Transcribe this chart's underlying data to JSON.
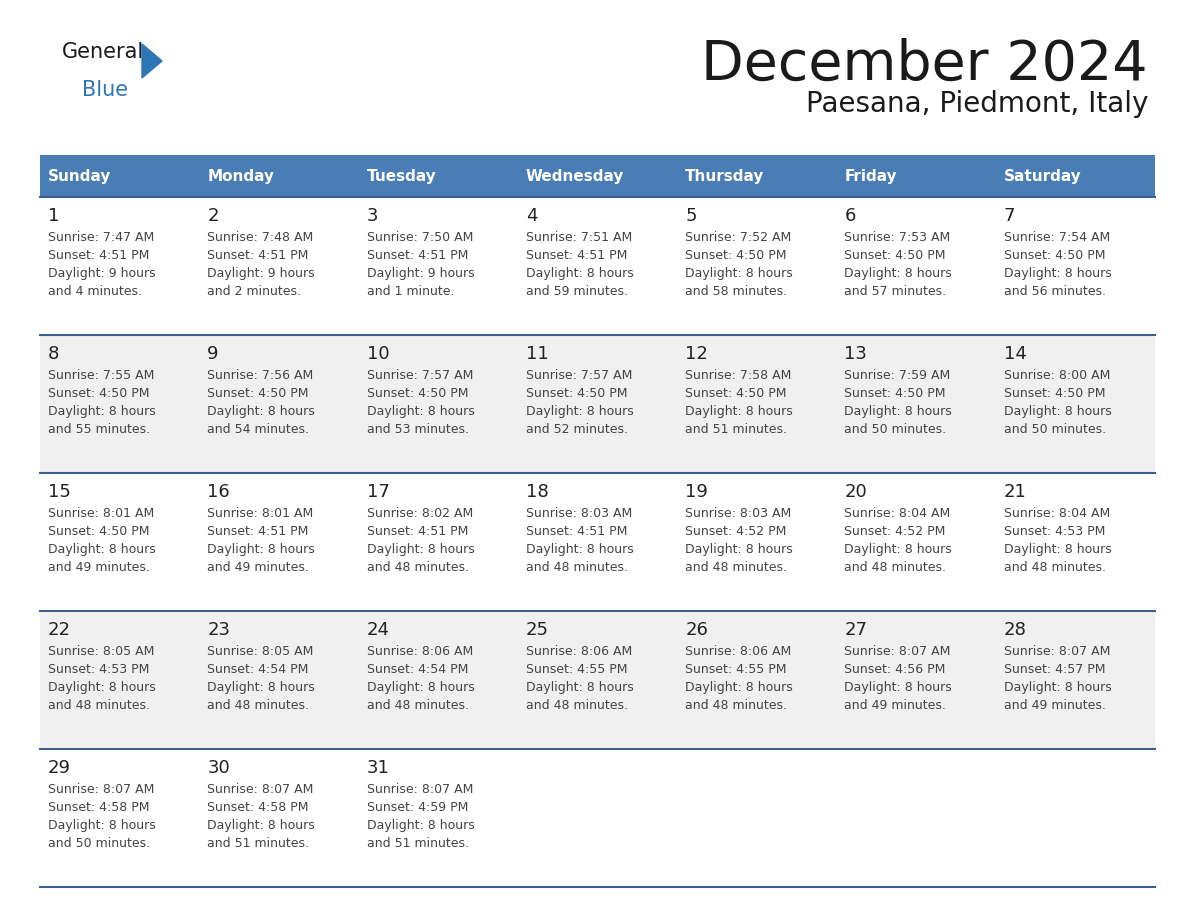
{
  "title": "December 2024",
  "subtitle": "Paesana, Piedmont, Italy",
  "header_bg": "#4a7cb5",
  "header_text_color": "#FFFFFF",
  "header_days": [
    "Sunday",
    "Monday",
    "Tuesday",
    "Wednesday",
    "Thursday",
    "Friday",
    "Saturday"
  ],
  "row_bg_even": "#FFFFFF",
  "row_bg_odd": "#f0f0f0",
  "cell_text_color": "#444444",
  "day_number_color": "#222222",
  "grid_line_color": "#3a6090",
  "title_color": "#1a1a1a",
  "subtitle_color": "#1a1a1a",
  "logo_general_color": "#1a1a1a",
  "logo_blue_color": "#2E75B6",
  "logo_triangle_color": "#2E75B6",
  "weeks": [
    [
      {
        "day": 1,
        "sunrise": "7:47 AM",
        "sunset": "4:51 PM",
        "daylight_line1": "9 hours",
        "daylight_line2": "and 4 minutes."
      },
      {
        "day": 2,
        "sunrise": "7:48 AM",
        "sunset": "4:51 PM",
        "daylight_line1": "9 hours",
        "daylight_line2": "and 2 minutes."
      },
      {
        "day": 3,
        "sunrise": "7:50 AM",
        "sunset": "4:51 PM",
        "daylight_line1": "9 hours",
        "daylight_line2": "and 1 minute."
      },
      {
        "day": 4,
        "sunrise": "7:51 AM",
        "sunset": "4:51 PM",
        "daylight_line1": "8 hours",
        "daylight_line2": "and 59 minutes."
      },
      {
        "day": 5,
        "sunrise": "7:52 AM",
        "sunset": "4:50 PM",
        "daylight_line1": "8 hours",
        "daylight_line2": "and 58 minutes."
      },
      {
        "day": 6,
        "sunrise": "7:53 AM",
        "sunset": "4:50 PM",
        "daylight_line1": "8 hours",
        "daylight_line2": "and 57 minutes."
      },
      {
        "day": 7,
        "sunrise": "7:54 AM",
        "sunset": "4:50 PM",
        "daylight_line1": "8 hours",
        "daylight_line2": "and 56 minutes."
      }
    ],
    [
      {
        "day": 8,
        "sunrise": "7:55 AM",
        "sunset": "4:50 PM",
        "daylight_line1": "8 hours",
        "daylight_line2": "and 55 minutes."
      },
      {
        "day": 9,
        "sunrise": "7:56 AM",
        "sunset": "4:50 PM",
        "daylight_line1": "8 hours",
        "daylight_line2": "and 54 minutes."
      },
      {
        "day": 10,
        "sunrise": "7:57 AM",
        "sunset": "4:50 PM",
        "daylight_line1": "8 hours",
        "daylight_line2": "and 53 minutes."
      },
      {
        "day": 11,
        "sunrise": "7:57 AM",
        "sunset": "4:50 PM",
        "daylight_line1": "8 hours",
        "daylight_line2": "and 52 minutes."
      },
      {
        "day": 12,
        "sunrise": "7:58 AM",
        "sunset": "4:50 PM",
        "daylight_line1": "8 hours",
        "daylight_line2": "and 51 minutes."
      },
      {
        "day": 13,
        "sunrise": "7:59 AM",
        "sunset": "4:50 PM",
        "daylight_line1": "8 hours",
        "daylight_line2": "and 50 minutes."
      },
      {
        "day": 14,
        "sunrise": "8:00 AM",
        "sunset": "4:50 PM",
        "daylight_line1": "8 hours",
        "daylight_line2": "and 50 minutes."
      }
    ],
    [
      {
        "day": 15,
        "sunrise": "8:01 AM",
        "sunset": "4:50 PM",
        "daylight_line1": "8 hours",
        "daylight_line2": "and 49 minutes."
      },
      {
        "day": 16,
        "sunrise": "8:01 AM",
        "sunset": "4:51 PM",
        "daylight_line1": "8 hours",
        "daylight_line2": "and 49 minutes."
      },
      {
        "day": 17,
        "sunrise": "8:02 AM",
        "sunset": "4:51 PM",
        "daylight_line1": "8 hours",
        "daylight_line2": "and 48 minutes."
      },
      {
        "day": 18,
        "sunrise": "8:03 AM",
        "sunset": "4:51 PM",
        "daylight_line1": "8 hours",
        "daylight_line2": "and 48 minutes."
      },
      {
        "day": 19,
        "sunrise": "8:03 AM",
        "sunset": "4:52 PM",
        "daylight_line1": "8 hours",
        "daylight_line2": "and 48 minutes."
      },
      {
        "day": 20,
        "sunrise": "8:04 AM",
        "sunset": "4:52 PM",
        "daylight_line1": "8 hours",
        "daylight_line2": "and 48 minutes."
      },
      {
        "day": 21,
        "sunrise": "8:04 AM",
        "sunset": "4:53 PM",
        "daylight_line1": "8 hours",
        "daylight_line2": "and 48 minutes."
      }
    ],
    [
      {
        "day": 22,
        "sunrise": "8:05 AM",
        "sunset": "4:53 PM",
        "daylight_line1": "8 hours",
        "daylight_line2": "and 48 minutes."
      },
      {
        "day": 23,
        "sunrise": "8:05 AM",
        "sunset": "4:54 PM",
        "daylight_line1": "8 hours",
        "daylight_line2": "and 48 minutes."
      },
      {
        "day": 24,
        "sunrise": "8:06 AM",
        "sunset": "4:54 PM",
        "daylight_line1": "8 hours",
        "daylight_line2": "and 48 minutes."
      },
      {
        "day": 25,
        "sunrise": "8:06 AM",
        "sunset": "4:55 PM",
        "daylight_line1": "8 hours",
        "daylight_line2": "and 48 minutes."
      },
      {
        "day": 26,
        "sunrise": "8:06 AM",
        "sunset": "4:55 PM",
        "daylight_line1": "8 hours",
        "daylight_line2": "and 48 minutes."
      },
      {
        "day": 27,
        "sunrise": "8:07 AM",
        "sunset": "4:56 PM",
        "daylight_line1": "8 hours",
        "daylight_line2": "and 49 minutes."
      },
      {
        "day": 28,
        "sunrise": "8:07 AM",
        "sunset": "4:57 PM",
        "daylight_line1": "8 hours",
        "daylight_line2": "and 49 minutes."
      }
    ],
    [
      {
        "day": 29,
        "sunrise": "8:07 AM",
        "sunset": "4:58 PM",
        "daylight_line1": "8 hours",
        "daylight_line2": "and 50 minutes."
      },
      {
        "day": 30,
        "sunrise": "8:07 AM",
        "sunset": "4:58 PM",
        "daylight_line1": "8 hours",
        "daylight_line2": "and 51 minutes."
      },
      {
        "day": 31,
        "sunrise": "8:07 AM",
        "sunset": "4:59 PM",
        "daylight_line1": "8 hours",
        "daylight_line2": "and 51 minutes."
      },
      null,
      null,
      null,
      null
    ]
  ]
}
